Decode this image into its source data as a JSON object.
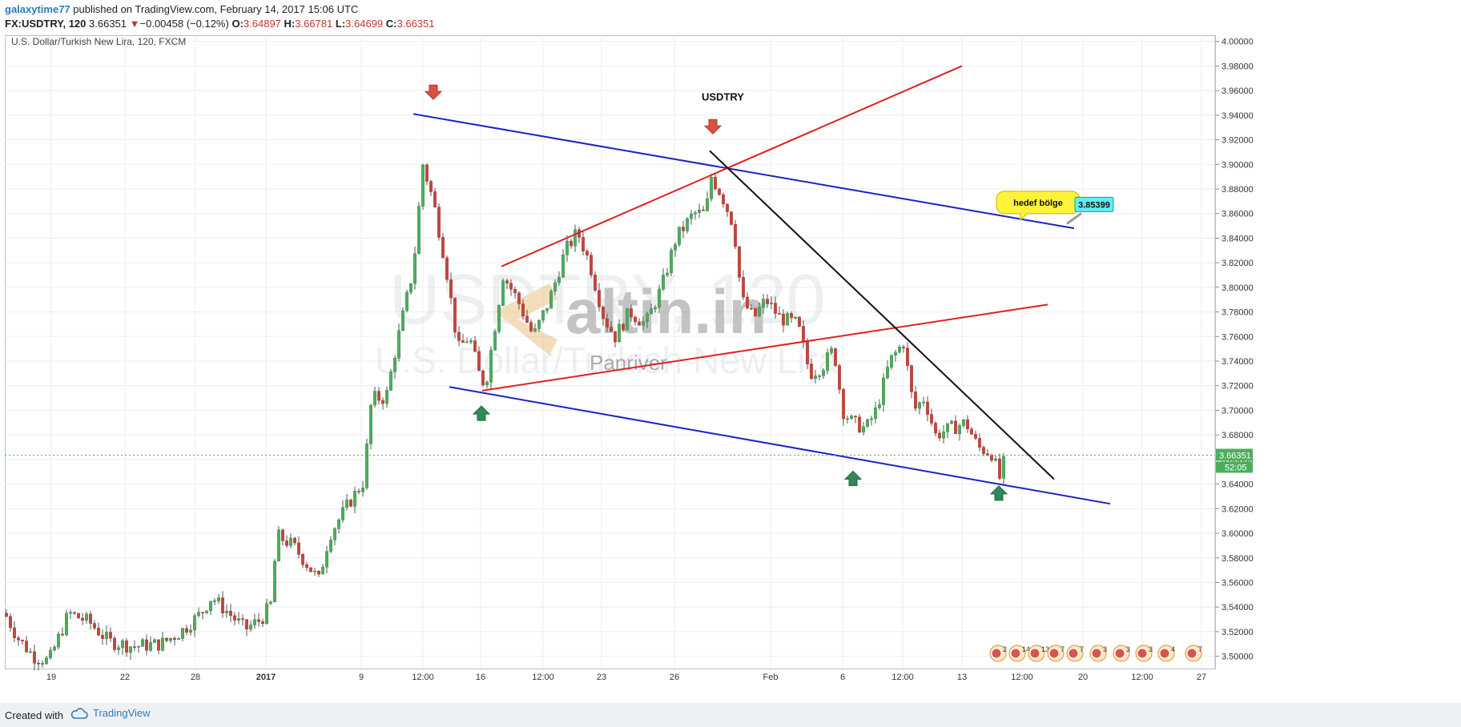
{
  "header": {
    "author": "galaxytime77",
    "published_text": "published on TradingView.com, February 14, 2017 15:06 UTC",
    "symbol": "FX:USDTRY, 120",
    "last": "3.66351",
    "change": "−0.00458 (−0.12%)",
    "open_label": "O:",
    "open": "3.64897",
    "high_label": "H:",
    "high": "3.66781",
    "low_label": "L:",
    "low": "3.64699",
    "close_label": "C:",
    "close": "3.66351"
  },
  "chart_data": {
    "type": "candlestick",
    "title": "U.S. Dollar/Turkish New Lira, 120, FXCM",
    "ylim": [
      3.49,
      4.005
    ],
    "y_ticks": [
      "4.00000",
      "3.98000",
      "3.96000",
      "3.94000",
      "3.92000",
      "3.90000",
      "3.88000",
      "3.86000",
      "3.84000",
      "3.82000",
      "3.80000",
      "3.78000",
      "3.76000",
      "3.74000",
      "3.72000",
      "3.70000",
      "3.68000",
      "3.66000",
      "3.64000",
      "3.62000",
      "3.60000",
      "3.58000",
      "3.56000",
      "3.54000",
      "3.52000",
      "3.50000"
    ],
    "x_ticks": [
      "19",
      "22",
      "28",
      "2017",
      "9",
      "12:00",
      "16",
      "12:00",
      "23",
      "26",
      "Feb",
      "6",
      "12:00",
      "13",
      "12:00",
      "20",
      "12:00",
      "27"
    ],
    "last_price_label": "3.66351",
    "countdown_label": "52:05",
    "watermark_symbol": "USDTRY, 120",
    "watermark_desc": "U.S. Dollar/Turkish New Lira",
    "watermark_brand": "altin.in",
    "watermark_brand_sub": "Panriver",
    "price_path": [
      [
        0,
        3.535
      ],
      [
        16,
        3.515
      ],
      [
        36,
        3.5
      ],
      [
        55,
        3.496
      ],
      [
        80,
        3.535
      ],
      [
        105,
        3.528
      ],
      [
        130,
        3.512
      ],
      [
        160,
        3.508
      ],
      [
        195,
        3.51
      ],
      [
        220,
        3.52
      ],
      [
        245,
        3.535
      ],
      [
        258,
        3.548
      ],
      [
        275,
        3.538
      ],
      [
        300,
        3.522
      ],
      [
        320,
        3.53
      ],
      [
        332,
        3.542
      ],
      [
        340,
        3.598
      ],
      [
        360,
        3.59
      ],
      [
        392,
        3.562
      ],
      [
        405,
        3.598
      ],
      [
        430,
        3.625
      ],
      [
        448,
        3.642
      ],
      [
        458,
        3.71
      ],
      [
        476,
        3.71
      ],
      [
        488,
        3.75
      ],
      [
        510,
        3.815
      ],
      [
        522,
        3.9
      ],
      [
        535,
        3.87
      ],
      [
        550,
        3.82
      ],
      [
        566,
        3.75
      ],
      [
        580,
        3.76
      ],
      [
        592,
        3.73
      ],
      [
        600,
        3.72
      ],
      [
        622,
        3.81
      ],
      [
        640,
        3.79
      ],
      [
        660,
        3.76
      ],
      [
        680,
        3.79
      ],
      [
        700,
        3.83
      ],
      [
        715,
        3.845
      ],
      [
        730,
        3.82
      ],
      [
        748,
        3.775
      ],
      [
        762,
        3.76
      ],
      [
        780,
        3.78
      ],
      [
        800,
        3.77
      ],
      [
        820,
        3.8
      ],
      [
        838,
        3.84
      ],
      [
        860,
        3.86
      ],
      [
        875,
        3.86
      ],
      [
        882,
        3.89
      ],
      [
        895,
        3.875
      ],
      [
        910,
        3.85
      ],
      [
        920,
        3.79
      ],
      [
        935,
        3.775
      ],
      [
        950,
        3.79
      ],
      [
        968,
        3.775
      ],
      [
        990,
        3.77
      ],
      [
        1005,
        3.73
      ],
      [
        1020,
        3.735
      ],
      [
        1035,
        3.75
      ],
      [
        1046,
        3.7
      ],
      [
        1058,
        3.69
      ],
      [
        1075,
        3.685
      ],
      [
        1088,
        3.7
      ],
      [
        1105,
        3.74
      ],
      [
        1122,
        3.755
      ],
      [
        1135,
        3.7
      ],
      [
        1148,
        3.71
      ],
      [
        1162,
        3.68
      ],
      [
        1180,
        3.685
      ],
      [
        1200,
        3.69
      ],
      [
        1215,
        3.67
      ],
      [
        1232,
        3.665
      ],
      [
        1242,
        3.645
      ],
      [
        1250,
        3.6635
      ]
    ],
    "trend_lines": [
      {
        "color": "#1c22c4",
        "from": [
          510,
          3.941
        ],
        "to": [
          1335,
          3.848
        ]
      },
      {
        "color": "#1c22c4",
        "from": [
          555,
          3.719
        ],
        "to": [
          1380,
          3.624
        ]
      },
      {
        "color": "#e02020",
        "from": [
          620,
          3.817
        ],
        "to": [
          1195,
          3.98
        ]
      },
      {
        "color": "#e02020",
        "from": [
          596,
          3.716
        ],
        "to": [
          1302,
          3.786
        ]
      },
      {
        "color": "#111111",
        "from": [
          880,
          3.911
        ],
        "to": [
          1310,
          3.644
        ]
      }
    ],
    "annotations": [
      {
        "type": "arrow-down",
        "x": 535,
        "y": 3.958
      },
      {
        "type": "arrow-down",
        "x": 884,
        "y": 3.93
      },
      {
        "type": "arrow-up",
        "x": 595,
        "y": 3.697
      },
      {
        "type": "arrow-up",
        "x": 1059,
        "y": 3.644
      },
      {
        "type": "arrow-up",
        "x": 1241,
        "y": 3.632
      },
      {
        "type": "text",
        "x": 870,
        "y": 3.952,
        "label": "USDTRY"
      },
      {
        "type": "callout",
        "x": 1290,
        "y": 3.869,
        "label": "hedef bölge"
      },
      {
        "type": "price-label",
        "x": 1356,
        "y": 3.868,
        "label": "3.85399"
      }
    ],
    "event_icon_labels": [
      "2",
      "14",
      "13",
      "7",
      "7",
      "3",
      "3",
      "3",
      "4",
      "7"
    ]
  },
  "footer": {
    "created_with": "Created with",
    "brand": "TradingView"
  }
}
